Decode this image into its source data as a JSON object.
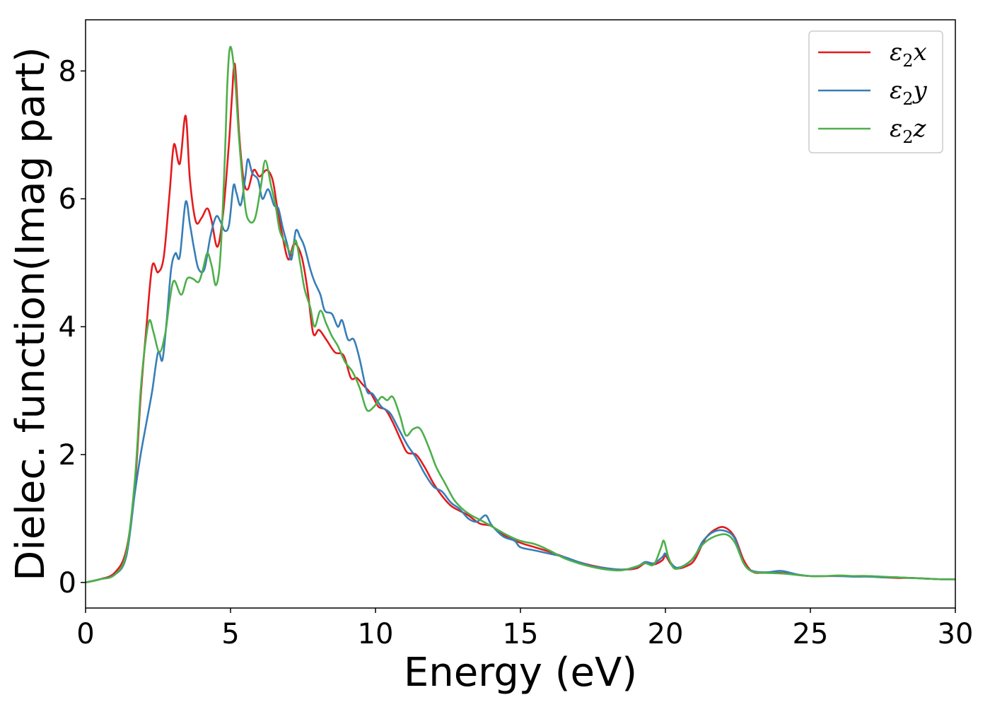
{
  "chart_data": {
    "type": "line",
    "xlabel": "Energy (eV)",
    "ylabel": "Dielec. function(Imag part)",
    "xlim": [
      0,
      30
    ],
    "ylim": [
      -0.4,
      8.8
    ],
    "xticks": [
      0,
      5,
      10,
      15,
      20,
      25,
      30
    ],
    "yticks": [
      0,
      2,
      4,
      6,
      8
    ],
    "grid": false,
    "legend_position": "top-right",
    "series": [
      {
        "name": "ε2x",
        "label_main": "ε",
        "label_sub": "2",
        "label_var": "x",
        "color": "#e41a1c",
        "points": [
          [
            0,
            0
          ],
          [
            0.5,
            0.05
          ],
          [
            1.0,
            0.15
          ],
          [
            1.4,
            0.5
          ],
          [
            1.7,
            1.5
          ],
          [
            1.9,
            2.9
          ],
          [
            2.1,
            4.0
          ],
          [
            2.3,
            4.95
          ],
          [
            2.5,
            4.85
          ],
          [
            2.7,
            5.1
          ],
          [
            2.9,
            6.1
          ],
          [
            3.05,
            6.85
          ],
          [
            3.25,
            6.55
          ],
          [
            3.45,
            7.3
          ],
          [
            3.6,
            6.3
          ],
          [
            3.8,
            5.65
          ],
          [
            4.0,
            5.7
          ],
          [
            4.2,
            5.85
          ],
          [
            4.35,
            5.65
          ],
          [
            4.55,
            5.25
          ],
          [
            4.75,
            5.8
          ],
          [
            4.95,
            6.9
          ],
          [
            5.05,
            7.6
          ],
          [
            5.15,
            8.1
          ],
          [
            5.3,
            7.0
          ],
          [
            5.45,
            6.3
          ],
          [
            5.6,
            6.15
          ],
          [
            5.8,
            6.45
          ],
          [
            6.0,
            6.35
          ],
          [
            6.25,
            6.45
          ],
          [
            6.45,
            6.3
          ],
          [
            6.6,
            5.9
          ],
          [
            6.8,
            5.4
          ],
          [
            7.0,
            5.05
          ],
          [
            7.2,
            5.3
          ],
          [
            7.45,
            5.1
          ],
          [
            7.65,
            4.6
          ],
          [
            7.85,
            3.9
          ],
          [
            8.05,
            3.95
          ],
          [
            8.3,
            3.8
          ],
          [
            8.6,
            3.6
          ],
          [
            8.9,
            3.55
          ],
          [
            9.15,
            3.2
          ],
          [
            9.35,
            3.2
          ],
          [
            9.55,
            3.1
          ],
          [
            9.85,
            2.95
          ],
          [
            10.1,
            2.75
          ],
          [
            10.35,
            2.7
          ],
          [
            10.6,
            2.5
          ],
          [
            10.9,
            2.2
          ],
          [
            11.1,
            2.03
          ],
          [
            11.4,
            2.0
          ],
          [
            11.7,
            1.8
          ],
          [
            12.0,
            1.55
          ],
          [
            12.3,
            1.35
          ],
          [
            12.6,
            1.2
          ],
          [
            12.9,
            1.12
          ],
          [
            13.2,
            1.05
          ],
          [
            13.6,
            0.92
          ],
          [
            14.0,
            0.88
          ],
          [
            14.5,
            0.72
          ],
          [
            15.0,
            0.62
          ],
          [
            15.5,
            0.55
          ],
          [
            16.0,
            0.48
          ],
          [
            16.5,
            0.4
          ],
          [
            17.0,
            0.32
          ],
          [
            17.5,
            0.26
          ],
          [
            18.0,
            0.22
          ],
          [
            18.5,
            0.2
          ],
          [
            19.0,
            0.22
          ],
          [
            19.3,
            0.3
          ],
          [
            19.6,
            0.28
          ],
          [
            19.9,
            0.35
          ],
          [
            20.0,
            0.42
          ],
          [
            20.2,
            0.28
          ],
          [
            20.4,
            0.22
          ],
          [
            20.7,
            0.25
          ],
          [
            21.0,
            0.35
          ],
          [
            21.4,
            0.7
          ],
          [
            21.8,
            0.85
          ],
          [
            22.1,
            0.85
          ],
          [
            22.4,
            0.7
          ],
          [
            22.7,
            0.35
          ],
          [
            23.0,
            0.17
          ],
          [
            23.4,
            0.15
          ],
          [
            24.0,
            0.15
          ],
          [
            24.5,
            0.12
          ],
          [
            25.0,
            0.1
          ],
          [
            25.5,
            0.1
          ],
          [
            26.0,
            0.1
          ],
          [
            26.5,
            0.1
          ],
          [
            27.0,
            0.1
          ],
          [
            27.5,
            0.08
          ],
          [
            28.0,
            0.07
          ],
          [
            28.5,
            0.07
          ],
          [
            29.0,
            0.06
          ],
          [
            29.5,
            0.05
          ],
          [
            30.0,
            0.05
          ]
        ]
      },
      {
        "name": "ε2y",
        "label_main": "ε",
        "label_sub": "2",
        "label_var": "y",
        "color": "#377eb8",
        "points": [
          [
            0,
            0
          ],
          [
            0.5,
            0.05
          ],
          [
            1.0,
            0.12
          ],
          [
            1.4,
            0.4
          ],
          [
            1.7,
            1.4
          ],
          [
            1.9,
            2.0
          ],
          [
            2.1,
            2.5
          ],
          [
            2.3,
            3.0
          ],
          [
            2.5,
            3.6
          ],
          [
            2.65,
            3.48
          ],
          [
            2.8,
            4.1
          ],
          [
            2.95,
            4.9
          ],
          [
            3.1,
            5.15
          ],
          [
            3.25,
            5.1
          ],
          [
            3.45,
            5.95
          ],
          [
            3.6,
            5.6
          ],
          [
            3.75,
            5.2
          ],
          [
            3.9,
            4.9
          ],
          [
            4.1,
            4.9
          ],
          [
            4.3,
            5.4
          ],
          [
            4.5,
            5.72
          ],
          [
            4.65,
            5.65
          ],
          [
            4.8,
            5.5
          ],
          [
            4.95,
            5.6
          ],
          [
            5.1,
            6.2
          ],
          [
            5.2,
            6.1
          ],
          [
            5.35,
            5.9
          ],
          [
            5.5,
            6.3
          ],
          [
            5.6,
            6.62
          ],
          [
            5.75,
            6.4
          ],
          [
            5.95,
            6.3
          ],
          [
            6.1,
            6.0
          ],
          [
            6.3,
            6.15
          ],
          [
            6.5,
            5.9
          ],
          [
            6.65,
            5.85
          ],
          [
            6.8,
            5.55
          ],
          [
            6.95,
            5.3
          ],
          [
            7.1,
            5.05
          ],
          [
            7.25,
            5.5
          ],
          [
            7.4,
            5.4
          ],
          [
            7.55,
            5.25
          ],
          [
            7.75,
            4.9
          ],
          [
            7.9,
            4.7
          ],
          [
            8.1,
            4.5
          ],
          [
            8.25,
            4.25
          ],
          [
            8.5,
            4.2
          ],
          [
            8.7,
            4.0
          ],
          [
            8.85,
            4.1
          ],
          [
            9.05,
            3.8
          ],
          [
            9.25,
            3.8
          ],
          [
            9.45,
            3.5
          ],
          [
            9.7,
            3.0
          ],
          [
            9.9,
            2.95
          ],
          [
            10.2,
            2.75
          ],
          [
            10.5,
            2.65
          ],
          [
            10.8,
            2.4
          ],
          [
            11.1,
            2.15
          ],
          [
            11.4,
            1.95
          ],
          [
            11.7,
            1.7
          ],
          [
            12.0,
            1.5
          ],
          [
            12.3,
            1.42
          ],
          [
            12.6,
            1.25
          ],
          [
            12.9,
            1.15
          ],
          [
            13.2,
            1.0
          ],
          [
            13.5,
            0.95
          ],
          [
            13.8,
            1.05
          ],
          [
            14.0,
            0.9
          ],
          [
            14.4,
            0.72
          ],
          [
            14.8,
            0.65
          ],
          [
            15.0,
            0.55
          ],
          [
            15.5,
            0.5
          ],
          [
            16.0,
            0.45
          ],
          [
            16.5,
            0.4
          ],
          [
            17.0,
            0.32
          ],
          [
            17.5,
            0.25
          ],
          [
            18.0,
            0.22
          ],
          [
            18.5,
            0.2
          ],
          [
            19.0,
            0.24
          ],
          [
            19.3,
            0.32
          ],
          [
            19.6,
            0.3
          ],
          [
            19.9,
            0.4
          ],
          [
            20.0,
            0.45
          ],
          [
            20.2,
            0.3
          ],
          [
            20.4,
            0.23
          ],
          [
            20.7,
            0.28
          ],
          [
            21.0,
            0.4
          ],
          [
            21.3,
            0.65
          ],
          [
            21.7,
            0.8
          ],
          [
            22.1,
            0.8
          ],
          [
            22.4,
            0.68
          ],
          [
            22.7,
            0.3
          ],
          [
            23.0,
            0.18
          ],
          [
            23.5,
            0.16
          ],
          [
            24.0,
            0.18
          ],
          [
            24.5,
            0.13
          ],
          [
            25.0,
            0.1
          ],
          [
            25.5,
            0.1
          ],
          [
            26.0,
            0.1
          ],
          [
            26.5,
            0.09
          ],
          [
            27.0,
            0.09
          ],
          [
            27.5,
            0.08
          ],
          [
            28.0,
            0.08
          ],
          [
            28.5,
            0.07
          ],
          [
            29.0,
            0.06
          ],
          [
            29.5,
            0.05
          ],
          [
            30.0,
            0.05
          ]
        ]
      },
      {
        "name": "ε2z",
        "label_main": "ε",
        "label_sub": "2",
        "label_var": "z",
        "color": "#4daf4a",
        "points": [
          [
            0,
            0
          ],
          [
            0.5,
            0.05
          ],
          [
            1.0,
            0.12
          ],
          [
            1.4,
            0.45
          ],
          [
            1.7,
            1.6
          ],
          [
            1.9,
            3.0
          ],
          [
            2.05,
            3.7
          ],
          [
            2.2,
            4.1
          ],
          [
            2.35,
            3.9
          ],
          [
            2.55,
            3.6
          ],
          [
            2.75,
            3.9
          ],
          [
            2.9,
            4.4
          ],
          [
            3.05,
            4.72
          ],
          [
            3.3,
            4.5
          ],
          [
            3.5,
            4.75
          ],
          [
            3.7,
            4.75
          ],
          [
            3.9,
            4.7
          ],
          [
            4.05,
            4.9
          ],
          [
            4.2,
            5.15
          ],
          [
            4.35,
            4.95
          ],
          [
            4.5,
            4.65
          ],
          [
            4.65,
            5.1
          ],
          [
            4.8,
            6.6
          ],
          [
            4.9,
            7.9
          ],
          [
            5.0,
            8.38
          ],
          [
            5.15,
            7.9
          ],
          [
            5.3,
            6.9
          ],
          [
            5.5,
            5.9
          ],
          [
            5.65,
            5.65
          ],
          [
            5.85,
            5.7
          ],
          [
            6.05,
            6.2
          ],
          [
            6.2,
            6.6
          ],
          [
            6.4,
            6.2
          ],
          [
            6.55,
            5.9
          ],
          [
            6.7,
            5.5
          ],
          [
            6.9,
            5.3
          ],
          [
            7.1,
            5.15
          ],
          [
            7.25,
            5.35
          ],
          [
            7.4,
            5.0
          ],
          [
            7.55,
            4.6
          ],
          [
            7.75,
            4.3
          ],
          [
            7.9,
            4.0
          ],
          [
            8.1,
            4.25
          ],
          [
            8.3,
            4.05
          ],
          [
            8.5,
            3.85
          ],
          [
            8.7,
            3.7
          ],
          [
            8.95,
            3.45
          ],
          [
            9.2,
            3.3
          ],
          [
            9.45,
            3.05
          ],
          [
            9.7,
            2.7
          ],
          [
            9.95,
            2.75
          ],
          [
            10.2,
            2.9
          ],
          [
            10.4,
            2.85
          ],
          [
            10.6,
            2.9
          ],
          [
            10.85,
            2.6
          ],
          [
            11.05,
            2.3
          ],
          [
            11.3,
            2.4
          ],
          [
            11.55,
            2.4
          ],
          [
            11.85,
            2.1
          ],
          [
            12.1,
            1.8
          ],
          [
            12.4,
            1.55
          ],
          [
            12.7,
            1.3
          ],
          [
            13.0,
            1.15
          ],
          [
            13.3,
            1.05
          ],
          [
            13.6,
            0.98
          ],
          [
            14.0,
            0.88
          ],
          [
            14.5,
            0.75
          ],
          [
            15.0,
            0.65
          ],
          [
            15.5,
            0.6
          ],
          [
            16.0,
            0.5
          ],
          [
            16.5,
            0.38
          ],
          [
            17.0,
            0.3
          ],
          [
            17.5,
            0.24
          ],
          [
            18.0,
            0.2
          ],
          [
            18.5,
            0.19
          ],
          [
            19.0,
            0.25
          ],
          [
            19.3,
            0.3
          ],
          [
            19.6,
            0.28
          ],
          [
            19.85,
            0.55
          ],
          [
            19.95,
            0.65
          ],
          [
            20.1,
            0.4
          ],
          [
            20.3,
            0.22
          ],
          [
            20.6,
            0.25
          ],
          [
            20.9,
            0.35
          ],
          [
            21.3,
            0.6
          ],
          [
            21.7,
            0.72
          ],
          [
            22.1,
            0.75
          ],
          [
            22.4,
            0.62
          ],
          [
            22.7,
            0.3
          ],
          [
            23.0,
            0.17
          ],
          [
            23.5,
            0.15
          ],
          [
            24.0,
            0.14
          ],
          [
            24.5,
            0.12
          ],
          [
            25.0,
            0.1
          ],
          [
            25.5,
            0.1
          ],
          [
            26.0,
            0.11
          ],
          [
            26.5,
            0.1
          ],
          [
            27.0,
            0.1
          ],
          [
            27.5,
            0.09
          ],
          [
            28.0,
            0.08
          ],
          [
            28.5,
            0.07
          ],
          [
            29.0,
            0.06
          ],
          [
            29.5,
            0.05
          ],
          [
            30.0,
            0.05
          ]
        ]
      }
    ]
  }
}
